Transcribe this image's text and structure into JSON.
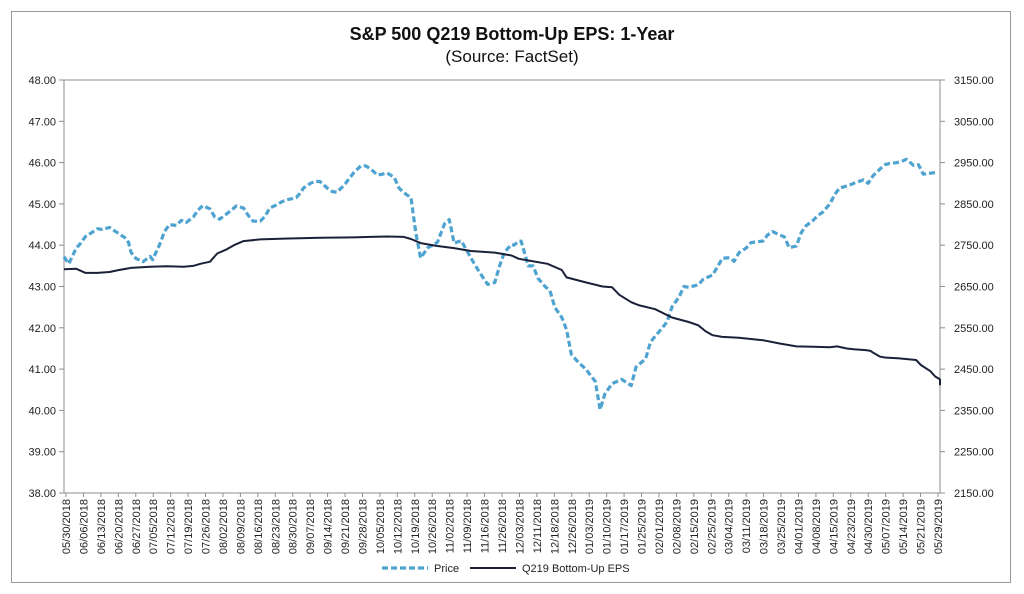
{
  "chart_data": {
    "type": "line",
    "title": "S&P 500 Q219 Bottom-Up EPS: 1-Year",
    "subtitle": "(Source: FactSet)",
    "x_range": [
      "2018-05-30",
      "2019-05-31"
    ],
    "y_left_lim": [
      38.0,
      48.0
    ],
    "y_right_lim": [
      2150,
      3150
    ],
    "y_left_ticks": [
      "38.00",
      "39.00",
      "40.00",
      "41.00",
      "42.00",
      "43.00",
      "44.00",
      "45.00",
      "46.00",
      "47.00",
      "48.00"
    ],
    "y_right_ticks": [
      "2150.00",
      "2250.00",
      "2350.00",
      "2450.00",
      "2550.00",
      "2650.00",
      "2750.00",
      "2850.00",
      "2950.00",
      "3050.00",
      "3150.00"
    ],
    "x_ticks": [
      "05/30/2018",
      "06/06/2018",
      "06/13/2018",
      "06/20/2018",
      "06/27/2018",
      "07/05/2018",
      "07/12/2018",
      "07/19/2018",
      "07/26/2018",
      "08/02/2018",
      "08/09/2018",
      "08/16/2018",
      "08/23/2018",
      "08/30/2018",
      "09/07/2018",
      "09/14/2018",
      "09/21/2018",
      "09/28/2018",
      "10/05/2018",
      "10/12/2018",
      "10/19/2018",
      "10/26/2018",
      "11/02/2018",
      "11/09/2018",
      "11/16/2018",
      "11/26/2018",
      "12/03/2018",
      "12/11/2018",
      "12/18/2018",
      "12/26/2018",
      "01/03/2019",
      "01/10/2019",
      "01/17/2019",
      "01/25/2019",
      "02/01/2019",
      "02/08/2019",
      "02/15/2019",
      "02/25/2019",
      "03/04/2019",
      "03/11/2019",
      "03/18/2019",
      "03/25/2019",
      "04/01/2019",
      "04/08/2019",
      "04/15/2019",
      "04/23/2019",
      "04/30/2019",
      "05/07/2019",
      "05/14/2019",
      "05/21/2019",
      "05/29/2019"
    ],
    "legend_position": "bottom",
    "grid": false,
    "series": [
      {
        "name": "Price",
        "axis": "right",
        "color": "#4fa3d1",
        "style": "dashed",
        "points": [
          [
            "2018-05-30",
            2722
          ],
          [
            "2018-06-01",
            2705
          ],
          [
            "2018-06-04",
            2742
          ],
          [
            "2018-06-06",
            2755
          ],
          [
            "2018-06-08",
            2771
          ],
          [
            "2018-06-11",
            2782
          ],
          [
            "2018-06-13",
            2790
          ],
          [
            "2018-06-15",
            2788
          ],
          [
            "2018-06-18",
            2793
          ],
          [
            "2018-06-20",
            2785
          ],
          [
            "2018-06-22",
            2778
          ],
          [
            "2018-06-25",
            2766
          ],
          [
            "2018-06-26",
            2756
          ],
          [
            "2018-06-27",
            2733
          ],
          [
            "2018-06-29",
            2718
          ],
          [
            "2018-07-02",
            2710
          ],
          [
            "2018-07-05",
            2723
          ],
          [
            "2018-07-06",
            2715
          ],
          [
            "2018-07-09",
            2752
          ],
          [
            "2018-07-11",
            2783
          ],
          [
            "2018-07-13",
            2800
          ],
          [
            "2018-07-16",
            2798
          ],
          [
            "2018-07-18",
            2810
          ],
          [
            "2018-07-20",
            2805
          ],
          [
            "2018-07-23",
            2818
          ],
          [
            "2018-07-25",
            2835
          ],
          [
            "2018-07-27",
            2846
          ],
          [
            "2018-07-30",
            2838
          ],
          [
            "2018-08-01",
            2818
          ],
          [
            "2018-08-03",
            2813
          ],
          [
            "2018-08-06",
            2826
          ],
          [
            "2018-08-08",
            2835
          ],
          [
            "2018-08-10",
            2845
          ],
          [
            "2018-08-13",
            2840
          ],
          [
            "2018-08-15",
            2822
          ],
          [
            "2018-08-17",
            2808
          ],
          [
            "2018-08-20",
            2808
          ],
          [
            "2018-08-22",
            2820
          ],
          [
            "2018-08-24",
            2840
          ],
          [
            "2018-08-27",
            2848
          ],
          [
            "2018-08-29",
            2855
          ],
          [
            "2018-08-31",
            2860
          ],
          [
            "2018-09-04",
            2865
          ],
          [
            "2018-09-06",
            2878
          ],
          [
            "2018-09-07",
            2888
          ],
          [
            "2018-09-10",
            2900
          ],
          [
            "2018-09-12",
            2905
          ],
          [
            "2018-09-14",
            2904
          ],
          [
            "2018-09-17",
            2888
          ],
          [
            "2018-09-19",
            2880
          ],
          [
            "2018-09-21",
            2878
          ],
          [
            "2018-09-24",
            2895
          ],
          [
            "2018-09-26",
            2910
          ],
          [
            "2018-09-28",
            2925
          ],
          [
            "2018-10-01",
            2942
          ],
          [
            "2018-10-03",
            2942
          ],
          [
            "2018-10-05",
            2935
          ],
          [
            "2018-10-08",
            2920
          ],
          [
            "2018-10-10",
            2922
          ],
          [
            "2018-10-12",
            2925
          ],
          [
            "2018-10-15",
            2914
          ],
          [
            "2018-10-17",
            2888
          ],
          [
            "2018-10-19",
            2877
          ],
          [
            "2018-10-22",
            2865
          ],
          [
            "2018-10-24",
            2780
          ],
          [
            "2018-10-26",
            2719
          ],
          [
            "2018-10-29",
            2744
          ],
          [
            "2018-10-31",
            2750
          ],
          [
            "2018-11-02",
            2757
          ],
          [
            "2018-11-05",
            2802
          ],
          [
            "2018-11-07",
            2812
          ],
          [
            "2018-11-09",
            2755
          ],
          [
            "2018-11-12",
            2761
          ],
          [
            "2018-11-14",
            2740
          ],
          [
            "2018-11-16",
            2719
          ],
          [
            "2018-11-19",
            2690
          ],
          [
            "2018-11-21",
            2672
          ],
          [
            "2018-11-23",
            2655
          ],
          [
            "2018-11-26",
            2660
          ],
          [
            "2018-11-28",
            2700
          ],
          [
            "2018-11-30",
            2733
          ],
          [
            "2018-12-03",
            2752
          ],
          [
            "2018-12-04",
            2750
          ],
          [
            "2018-12-06",
            2760
          ],
          [
            "2018-12-07",
            2760
          ],
          [
            "2018-12-10",
            2700
          ],
          [
            "2018-12-12",
            2700
          ],
          [
            "2018-12-14",
            2670
          ],
          [
            "2018-12-17",
            2650
          ],
          [
            "2018-12-19",
            2640
          ],
          [
            "2018-12-21",
            2600
          ],
          [
            "2018-12-24",
            2575
          ],
          [
            "2018-12-26",
            2545
          ],
          [
            "2018-12-28",
            2485
          ],
          [
            "2018-12-31",
            2466
          ],
          [
            "2019-01-03",
            2450
          ],
          [
            "2019-01-07",
            2420
          ],
          [
            "2019-01-09",
            2352
          ],
          [
            "2019-01-11",
            2390
          ],
          [
            "2019-01-14",
            2415
          ],
          [
            "2019-01-16",
            2420
          ],
          [
            "2019-01-18",
            2425
          ],
          [
            "2019-01-22",
            2410
          ],
          [
            "2019-01-24",
            2455
          ],
          [
            "2019-01-28",
            2475
          ],
          [
            "2019-01-30",
            2515
          ],
          [
            "2019-02-01",
            2530
          ],
          [
            "2019-02-04",
            2550
          ],
          [
            "2019-02-06",
            2565
          ],
          [
            "2019-02-08",
            2600
          ],
          [
            "2019-02-11",
            2625
          ],
          [
            "2019-02-13",
            2650
          ],
          [
            "2019-02-15",
            2648
          ],
          [
            "2019-02-19",
            2654
          ],
          [
            "2019-02-21",
            2667
          ],
          [
            "2019-02-25",
            2678
          ],
          [
            "2019-02-27",
            2697
          ],
          [
            "2019-03-01",
            2718
          ],
          [
            "2019-03-04",
            2720
          ],
          [
            "2019-03-06",
            2711
          ],
          [
            "2019-03-08",
            2732
          ],
          [
            "2019-03-11",
            2743
          ],
          [
            "2019-03-13",
            2756
          ],
          [
            "2019-03-15",
            2758
          ],
          [
            "2019-03-18",
            2760
          ],
          [
            "2019-03-20",
            2775
          ],
          [
            "2019-03-22",
            2783
          ],
          [
            "2019-03-25",
            2775
          ],
          [
            "2019-03-27",
            2770
          ],
          [
            "2019-03-29",
            2744
          ],
          [
            "2019-04-01",
            2748
          ],
          [
            "2019-04-03",
            2780
          ],
          [
            "2019-04-05",
            2797
          ],
          [
            "2019-04-08",
            2810
          ],
          [
            "2019-04-10",
            2822
          ],
          [
            "2019-04-12",
            2830
          ],
          [
            "2019-04-15",
            2850
          ],
          [
            "2019-04-17",
            2873
          ],
          [
            "2019-04-19",
            2888
          ],
          [
            "2019-04-23",
            2895
          ],
          [
            "2019-04-25",
            2900
          ],
          [
            "2019-04-29",
            2908
          ],
          [
            "2019-05-01",
            2900
          ],
          [
            "2019-05-03",
            2918
          ],
          [
            "2019-05-06",
            2935
          ],
          [
            "2019-05-08",
            2945
          ],
          [
            "2019-05-10",
            2948
          ],
          [
            "2019-05-13",
            2950
          ],
          [
            "2019-05-15",
            2953
          ],
          [
            "2019-05-17",
            2958
          ],
          [
            "2019-05-20",
            2943
          ],
          [
            "2019-05-22",
            2945
          ],
          [
            "2019-05-24",
            2922
          ],
          [
            "2019-05-29",
            2926
          ]
        ]
      },
      {
        "name": "Q219 Bottom-Up EPS",
        "axis": "left",
        "color": "#1a2138",
        "style": "solid",
        "points": [
          [
            "2018-05-30",
            43.42
          ],
          [
            "2018-06-04",
            43.43
          ],
          [
            "2018-06-06",
            43.38
          ],
          [
            "2018-06-08",
            43.33
          ],
          [
            "2018-06-13",
            43.33
          ],
          [
            "2018-06-18",
            43.35
          ],
          [
            "2018-06-22",
            43.4
          ],
          [
            "2018-06-27",
            43.45
          ],
          [
            "2018-07-05",
            43.48
          ],
          [
            "2018-07-12",
            43.49
          ],
          [
            "2018-07-19",
            43.48
          ],
          [
            "2018-07-23",
            43.5
          ],
          [
            "2018-07-26",
            43.55
          ],
          [
            "2018-07-30",
            43.6
          ],
          [
            "2018-08-02",
            43.8
          ],
          [
            "2018-08-06",
            43.9
          ],
          [
            "2018-08-09",
            44.0
          ],
          [
            "2018-08-13",
            44.1
          ],
          [
            "2018-08-20",
            44.14
          ],
          [
            "2018-08-30",
            44.16
          ],
          [
            "2018-09-14",
            44.18
          ],
          [
            "2018-09-28",
            44.19
          ],
          [
            "2018-10-05",
            44.2
          ],
          [
            "2018-10-12",
            44.21
          ],
          [
            "2018-10-19",
            44.2
          ],
          [
            "2018-10-22",
            44.15
          ],
          [
            "2018-10-26",
            44.05
          ],
          [
            "2018-11-02",
            43.98
          ],
          [
            "2018-11-09",
            43.93
          ],
          [
            "2018-11-16",
            43.86
          ],
          [
            "2018-11-26",
            43.82
          ],
          [
            "2018-12-03",
            43.75
          ],
          [
            "2018-12-06",
            43.67
          ],
          [
            "2018-12-11",
            43.62
          ],
          [
            "2018-12-18",
            43.55
          ],
          [
            "2018-12-24",
            43.4
          ],
          [
            "2018-12-26",
            43.22
          ],
          [
            "2019-01-03",
            43.1
          ],
          [
            "2019-01-10",
            43.0
          ],
          [
            "2019-01-14",
            42.98
          ],
          [
            "2019-01-17",
            42.8
          ],
          [
            "2019-01-22",
            42.62
          ],
          [
            "2019-01-25",
            42.55
          ],
          [
            "2019-02-01",
            42.45
          ],
          [
            "2019-02-08",
            42.25
          ],
          [
            "2019-02-15",
            42.14
          ],
          [
            "2019-02-19",
            42.06
          ],
          [
            "2019-02-22",
            41.92
          ],
          [
            "2019-02-25",
            41.82
          ],
          [
            "2019-03-01",
            41.78
          ],
          [
            "2019-03-08",
            41.76
          ],
          [
            "2019-03-18",
            41.7
          ],
          [
            "2019-03-25",
            41.62
          ],
          [
            "2019-04-01",
            41.55
          ],
          [
            "2019-04-08",
            41.54
          ],
          [
            "2019-04-15",
            41.53
          ],
          [
            "2019-04-18",
            41.55
          ],
          [
            "2019-04-22",
            41.5
          ],
          [
            "2019-04-25",
            41.48
          ],
          [
            "2019-04-30",
            41.46
          ],
          [
            "2019-05-02",
            41.44
          ],
          [
            "2019-05-03",
            41.4
          ],
          [
            "2019-05-06",
            41.3
          ],
          [
            "2019-05-08",
            41.28
          ],
          [
            "2019-05-14",
            41.26
          ],
          [
            "2019-05-21",
            41.22
          ],
          [
            "2019-05-23",
            41.1
          ],
          [
            "2019-05-27",
            40.95
          ],
          [
            "2019-05-29",
            40.82
          ],
          [
            "2019-05-31",
            40.75
          ],
          [
            "2019-05-31",
            40.71
          ],
          [
            "2019-05-31",
            40.7
          ],
          [
            "2019-05-31",
            40.68
          ],
          [
            "2019-05-31",
            40.62
          ],
          [
            "2019-05-31",
            40.61
          ]
        ]
      }
    ]
  }
}
